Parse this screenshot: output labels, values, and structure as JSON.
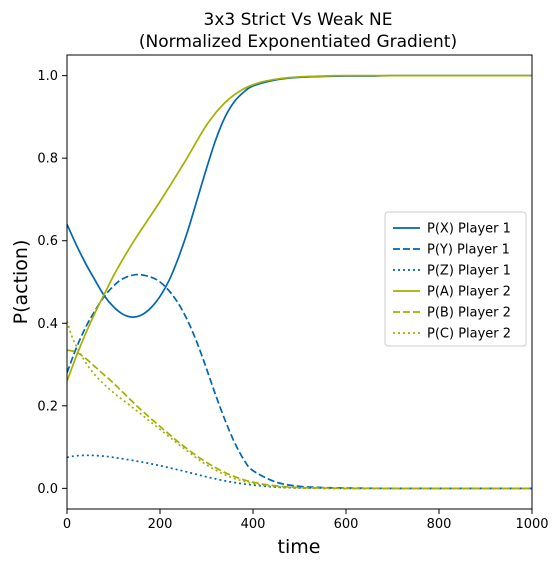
{
  "chart_data": {
    "type": "line",
    "title_line1": "3x3 Strict Vs Weak NE",
    "title_line2": "(Normalized Exponentiated Gradient)",
    "xlabel": "time",
    "ylabel": "P(action)",
    "xlim": [
      0,
      1000
    ],
    "ylim": [
      -0.05,
      1.05
    ],
    "xticks": [
      0,
      200,
      400,
      600,
      800,
      1000
    ],
    "xtick_labels": [
      "0",
      "200",
      "400",
      "600",
      "800",
      "1000"
    ],
    "yticks": [
      0.0,
      0.2,
      0.4,
      0.6,
      0.8,
      1.0
    ],
    "ytick_labels": [
      "0.0",
      "0.2",
      "0.4",
      "0.6",
      "0.8",
      "1.0"
    ],
    "grid": false,
    "legend_position": "right",
    "series": [
      {
        "name": "P(X) Player 1",
        "color": "#0066b3",
        "dash": "solid",
        "x": [
          0,
          20,
          40,
          60,
          80,
          100,
          120,
          140,
          160,
          180,
          200,
          220,
          240,
          260,
          280,
          300,
          320,
          340,
          360,
          380,
          400,
          450,
          500,
          550,
          600,
          650,
          700,
          800,
          900,
          1000
        ],
        "y": [
          0.64,
          0.59,
          0.545,
          0.505,
          0.467,
          0.44,
          0.422,
          0.415,
          0.42,
          0.437,
          0.465,
          0.505,
          0.56,
          0.625,
          0.7,
          0.775,
          0.845,
          0.9,
          0.937,
          0.96,
          0.975,
          0.99,
          0.996,
          0.998,
          0.999,
          0.999,
          1.0,
          1.0,
          1.0,
          1.0
        ]
      },
      {
        "name": "P(Y) Player 1",
        "color": "#0066b3",
        "dash": "dashed",
        "x": [
          0,
          20,
          40,
          60,
          80,
          100,
          120,
          150,
          180,
          200,
          220,
          240,
          260,
          280,
          300,
          320,
          340,
          360,
          380,
          400,
          450,
          500,
          550,
          600,
          700,
          800,
          1000
        ],
        "y": [
          0.28,
          0.34,
          0.39,
          0.43,
          0.465,
          0.49,
          0.508,
          0.518,
          0.512,
          0.5,
          0.478,
          0.447,
          0.405,
          0.352,
          0.29,
          0.225,
          0.165,
          0.112,
          0.07,
          0.043,
          0.015,
          0.005,
          0.002,
          0.001,
          0.0,
          0.0,
          0.0
        ]
      },
      {
        "name": "P(Z) Player 1",
        "color": "#0066b3",
        "dash": "dotted",
        "x": [
          0,
          20,
          50,
          80,
          100,
          150,
          200,
          250,
          300,
          350,
          400,
          450,
          500,
          600,
          700,
          800,
          1000
        ],
        "y": [
          0.075,
          0.079,
          0.08,
          0.078,
          0.075,
          0.066,
          0.055,
          0.042,
          0.028,
          0.016,
          0.008,
          0.003,
          0.001,
          0.0,
          0.0,
          0.0,
          0.0
        ]
      },
      {
        "name": "P(A) Player 2",
        "color": "#a4b000",
        "dash": "solid",
        "x": [
          0,
          20,
          40,
          60,
          80,
          100,
          120,
          150,
          200,
          250,
          300,
          340,
          380,
          420,
          460,
          500,
          550,
          600,
          700,
          800,
          900,
          1000
        ],
        "y": [
          0.26,
          0.32,
          0.375,
          0.425,
          0.47,
          0.515,
          0.555,
          0.61,
          0.695,
          0.785,
          0.88,
          0.935,
          0.968,
          0.985,
          0.993,
          0.997,
          0.999,
          1.0,
          1.0,
          1.0,
          1.0,
          1.0
        ]
      },
      {
        "name": "P(B) Player 2",
        "color": "#a4b000",
        "dash": "dashed",
        "x": [
          0,
          20,
          40,
          60,
          80,
          100,
          150,
          200,
          250,
          300,
          350,
          400,
          450,
          500,
          550,
          600,
          700,
          800,
          1000
        ],
        "y": [
          0.335,
          0.33,
          0.315,
          0.295,
          0.275,
          0.255,
          0.2,
          0.15,
          0.103,
          0.063,
          0.033,
          0.015,
          0.006,
          0.002,
          0.001,
          0.0,
          0.0,
          0.0,
          0.0
        ]
      },
      {
        "name": "P(C) Player 2",
        "color": "#a4b000",
        "dash": "dotted",
        "x": [
          0,
          10,
          20,
          40,
          60,
          80,
          100,
          150,
          200,
          250,
          300,
          350,
          400,
          450,
          500,
          550,
          600,
          700,
          800,
          1000
        ],
        "y": [
          0.405,
          0.37,
          0.345,
          0.305,
          0.275,
          0.252,
          0.232,
          0.188,
          0.143,
          0.098,
          0.057,
          0.028,
          0.012,
          0.004,
          0.001,
          0.0,
          0.0,
          0.0,
          0.0,
          0.0
        ]
      }
    ]
  }
}
